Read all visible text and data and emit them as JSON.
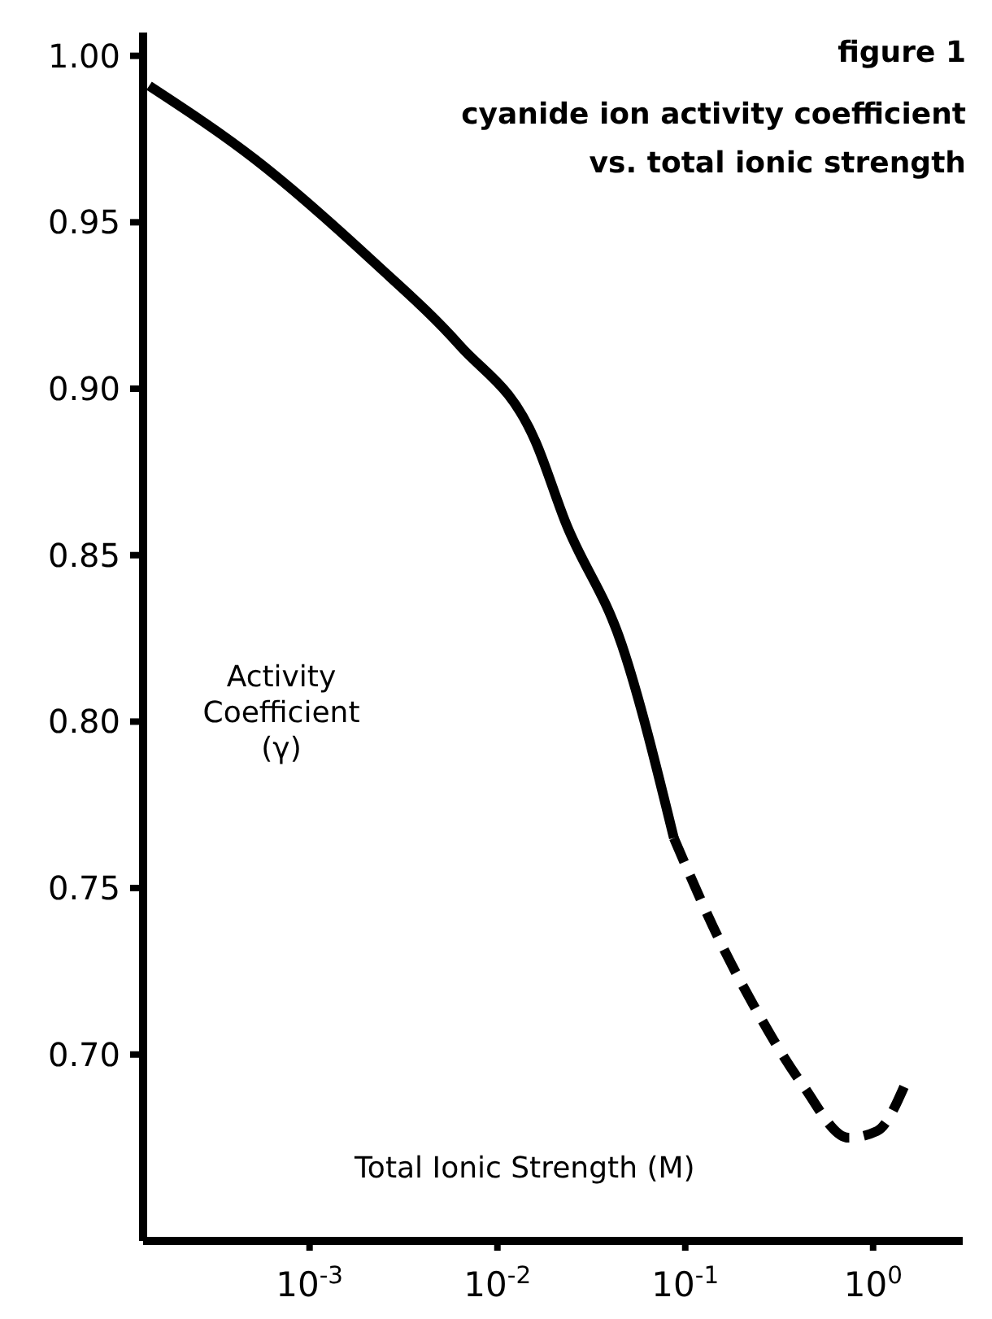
{
  "chart_data": {
    "type": "line",
    "title": "figure 1",
    "subtitle": "cyanide ion activity coefficient\nvs. total ionic strength",
    "xlabel": "Total Ionic Strength (M)",
    "ylabel": "Activity Coefficient\n(γ)",
    "log": "x",
    "xlim": [
      0.00013,
      3
    ],
    "xticks": [
      {
        "value": 0.001,
        "label": "10$^{-3}$"
      },
      {
        "value": 0.01,
        "label": "10$^{-2}$"
      },
      {
        "value": 0.1,
        "label": "10$^{-1}$"
      },
      {
        "value": 1,
        "label": "10$^{0}$"
      }
    ],
    "ylim": [
      0.644,
      1.007
    ],
    "yticks": [
      {
        "value": 0.7,
        "label": "0.70"
      },
      {
        "value": 0.75,
        "label": "0.75"
      },
      {
        "value": 0.8,
        "label": "0.80"
      },
      {
        "value": 0.85,
        "label": "0.85"
      },
      {
        "value": 0.9,
        "label": "0.90"
      },
      {
        "value": 0.95,
        "label": "0.95"
      },
      {
        "value": 1,
        "label": "1.00"
      }
    ],
    "marker": "none",
    "series": [
      {
        "color": "#000000",
        "line_style": "solid",
        "x": [
          0.00014,
          0.00051,
          0.0022,
          0.0063,
          0.016,
          0.023,
          0.046,
          0.087
        ],
        "values": [
          0.991,
          0.969,
          0.938,
          0.913,
          0.884,
          0.86,
          0.823,
          0.765
        ]
      },
      {
        "color": "#000000",
        "line_style": "dashed",
        "x": [
          0.087,
          0.166,
          0.23,
          0.42,
          0.74,
          1.05,
          1.48
        ],
        "values": [
          0.765,
          0.73,
          0.715,
          0.691,
          0.675,
          0.677,
          0.691
        ]
      }
    ]
  }
}
